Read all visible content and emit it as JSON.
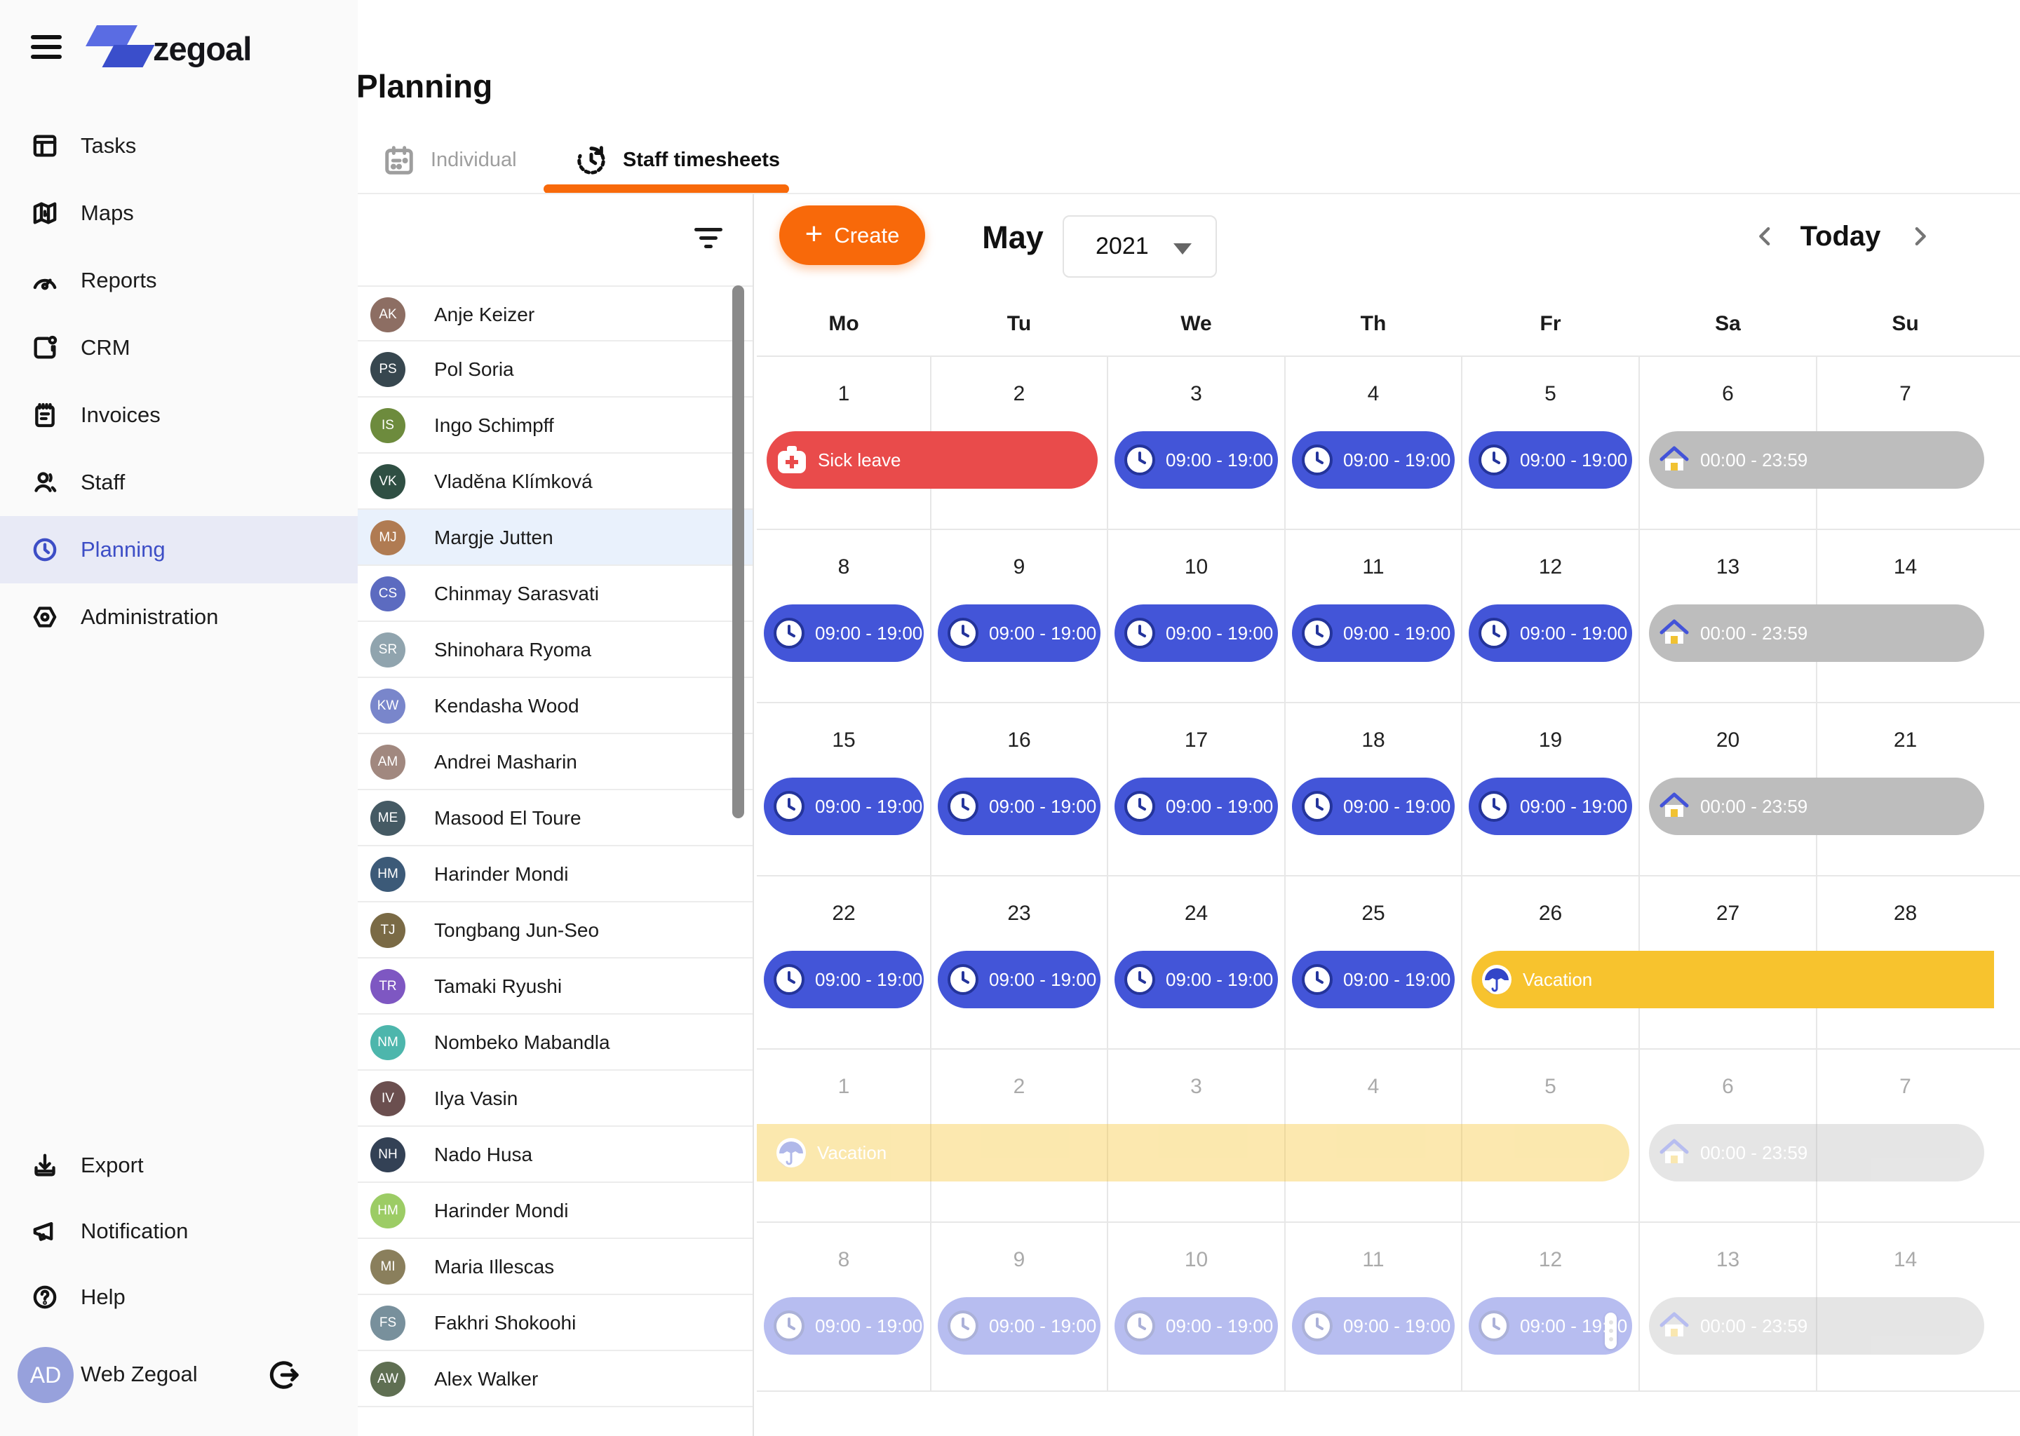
{
  "sidebar": {
    "logo_text": "zegoal",
    "items": [
      {
        "label": "Tasks",
        "icon": "tasks-icon",
        "active": false
      },
      {
        "label": "Maps",
        "icon": "maps-icon",
        "active": false
      },
      {
        "label": "Reports",
        "icon": "reports-icon",
        "active": false
      },
      {
        "label": "CRM",
        "icon": "crm-icon",
        "active": false
      },
      {
        "label": "Invoices",
        "icon": "invoices-icon",
        "active": false
      },
      {
        "label": "Staff",
        "icon": "staff-icon",
        "active": false
      },
      {
        "label": "Planning",
        "icon": "planning-clock-icon",
        "active": true
      },
      {
        "label": "Administration",
        "icon": "administration-icon",
        "active": false
      }
    ],
    "footer_items": [
      {
        "label": "Export",
        "icon": "export-icon"
      },
      {
        "label": "Notification",
        "icon": "notification-icon"
      },
      {
        "label": "Help",
        "icon": "help-icon"
      }
    ],
    "account": {
      "initials": "AD",
      "label": "Web Zegoal"
    }
  },
  "header": {
    "title": "Planning"
  },
  "tabs": [
    {
      "label": "Individual",
      "active": false
    },
    {
      "label": "Staff timesheets",
      "active": true
    }
  ],
  "staff_list": {
    "selected_index": 4,
    "names": [
      "Anje Keizer",
      "Pol Soria",
      "Ingo Schimpff",
      "Vladěna Klímková",
      "Margje Jutten",
      "Chinmay Sarasvati",
      "Shinohara Ryoma",
      "Kendasha Wood",
      "Andrei Masharin",
      "Masood El Toure",
      "Harinder Mondi",
      "Tongbang Jun-Seo",
      "Tamaki Ryushi",
      "Nombeko Mabandla",
      "Ilya Vasin",
      "Nado Husa",
      "Harinder Mondi",
      "Maria Illescas",
      "Fakhri Shokoohi",
      "Alex Walker"
    ],
    "avatar_palette": [
      "#8d6e63",
      "#37474f",
      "#6d8b3d",
      "#2f4f43",
      "#b07b52",
      "#5c6bc0",
      "#90a4ae",
      "#7986cb",
      "#a1887f",
      "#455a64",
      "#3c5a78",
      "#7a6a45",
      "#7e57c2",
      "#4db6ac",
      "#6b4f4f",
      "#334155",
      "#9ccc65",
      "#8a7f5c",
      "#78909c",
      "#5f6f52"
    ]
  },
  "toolbar": {
    "create_label": "Create",
    "month": "May",
    "year": "2021",
    "today_label": "Today"
  },
  "calendar": {
    "day_headers": [
      "Mo",
      "Tu",
      "We",
      "Th",
      "Fr",
      "Sa",
      "Su"
    ],
    "labels": {
      "work": "09:00 - 19:00",
      "all_day": "00:00 - 23:59",
      "sick": "Sick leave",
      "vacation": "Vacation"
    },
    "weeks": [
      {
        "dates": [
          1,
          2,
          3,
          4,
          5,
          6,
          7
        ],
        "faded": false,
        "events": [
          {
            "type": "sick",
            "label": "Sick leave",
            "start": 0,
            "span": 2
          },
          {
            "type": "work",
            "label": "09:00 - 19:00",
            "start": 2,
            "span": 1
          },
          {
            "type": "work",
            "label": "09:00 - 19:00",
            "start": 3,
            "span": 1
          },
          {
            "type": "work",
            "label": "09:00 - 19:00",
            "start": 4,
            "span": 1
          },
          {
            "type": "home",
            "label": "00:00 - 23:59",
            "start": 5,
            "span": 2
          }
        ]
      },
      {
        "dates": [
          8,
          9,
          10,
          11,
          12,
          13,
          14
        ],
        "faded": false,
        "events": [
          {
            "type": "work",
            "label": "09:00 - 19:00",
            "start": 0,
            "span": 1
          },
          {
            "type": "work",
            "label": "09:00 - 19:00",
            "start": 1,
            "span": 1
          },
          {
            "type": "work",
            "label": "09:00 - 19:00",
            "start": 2,
            "span": 1
          },
          {
            "type": "work",
            "label": "09:00 - 19:00",
            "start": 3,
            "span": 1
          },
          {
            "type": "work",
            "label": "09:00 - 19:00",
            "start": 4,
            "span": 1
          },
          {
            "type": "home",
            "label": "00:00 - 23:59",
            "start": 5,
            "span": 2
          }
        ]
      },
      {
        "dates": [
          15,
          16,
          17,
          18,
          19,
          20,
          21
        ],
        "faded": false,
        "events": [
          {
            "type": "work",
            "label": "09:00 - 19:00",
            "start": 0,
            "span": 1
          },
          {
            "type": "work",
            "label": "09:00 - 19:00",
            "start": 1,
            "span": 1
          },
          {
            "type": "work",
            "label": "09:00 - 19:00",
            "start": 2,
            "span": 1
          },
          {
            "type": "work",
            "label": "09:00 - 19:00",
            "start": 3,
            "span": 1
          },
          {
            "type": "work",
            "label": "09:00 - 19:00",
            "start": 4,
            "span": 1
          },
          {
            "type": "home",
            "label": "00:00 - 23:59",
            "start": 5,
            "span": 2
          }
        ]
      },
      {
        "dates": [
          22,
          23,
          24,
          25,
          26,
          27,
          28
        ],
        "faded": false,
        "events": [
          {
            "type": "work",
            "label": "09:00 - 19:00",
            "start": 0,
            "span": 1
          },
          {
            "type": "work",
            "label": "09:00 - 19:00",
            "start": 1,
            "span": 1
          },
          {
            "type": "work",
            "label": "09:00 - 19:00",
            "start": 2,
            "span": 1
          },
          {
            "type": "work",
            "label": "09:00 - 19:00",
            "start": 3,
            "span": 1
          },
          {
            "type": "vacation",
            "label": "Vacation",
            "start": 4,
            "span": 3,
            "flat_right": true
          }
        ]
      },
      {
        "dates": [
          1,
          2,
          3,
          4,
          5,
          6,
          7
        ],
        "faded": true,
        "events": [
          {
            "type": "vacation",
            "label": "Vacation",
            "start": 0,
            "span": 5,
            "flat_left": true
          },
          {
            "type": "home",
            "label": "00:00 - 23:59",
            "start": 5,
            "span": 2
          }
        ]
      },
      {
        "dates": [
          8,
          9,
          10,
          11,
          12,
          13,
          14
        ],
        "faded": true,
        "events": [
          {
            "type": "work",
            "label": "09:00 - 19:00",
            "start": 0,
            "span": 1
          },
          {
            "type": "work",
            "label": "09:00 - 19:00",
            "start": 1,
            "span": 1
          },
          {
            "type": "work",
            "label": "09:00 - 19:00",
            "start": 2,
            "span": 1
          },
          {
            "type": "work",
            "label": "09:00 - 19:00",
            "start": 3,
            "span": 1
          },
          {
            "type": "work",
            "label": "09:00 - 19:00",
            "start": 4,
            "span": 1
          },
          {
            "type": "home",
            "label": "00:00 - 23:59",
            "start": 5,
            "span": 2
          }
        ]
      }
    ]
  },
  "colors": {
    "accent_orange": "#F8690A",
    "event_blue": "#4355D8",
    "event_red": "#E94B4B",
    "event_gray": "#BDBDBD",
    "event_yellow": "#F7C32E",
    "nav_active": "#3D4EC6",
    "nav_active_bg": "#E8EAF6",
    "selected_row_bg": "#E9F1FC"
  }
}
